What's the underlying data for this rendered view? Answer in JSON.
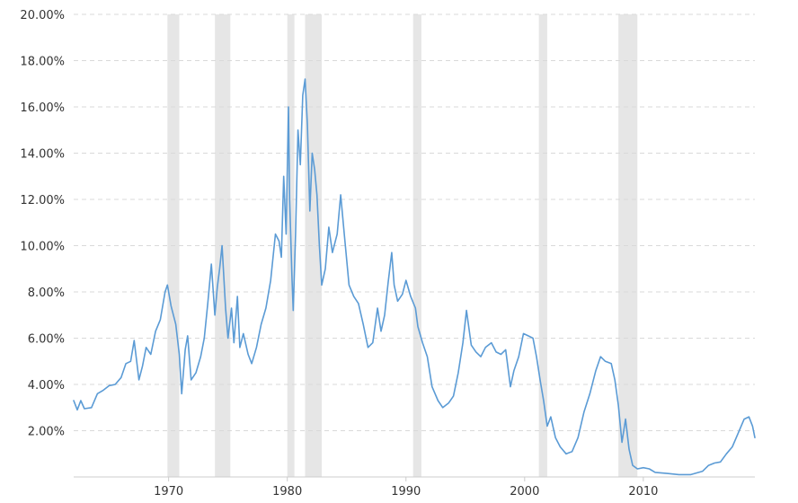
{
  "chart_data": {
    "type": "line",
    "title": "",
    "xlabel": "",
    "ylabel": "",
    "xlim": [
      1962.0,
      2019.4
    ],
    "ylim": [
      0,
      20
    ],
    "grid": true,
    "y_ticks": [
      {
        "value": 2,
        "label": "2.00%"
      },
      {
        "value": 4,
        "label": "4.00%"
      },
      {
        "value": 6,
        "label": "6.00%"
      },
      {
        "value": 8,
        "label": "8.00%"
      },
      {
        "value": 10,
        "label": "10.00%"
      },
      {
        "value": 12,
        "label": "12.00%"
      },
      {
        "value": 14,
        "label": "14.00%"
      },
      {
        "value": 16,
        "label": "16.00%"
      },
      {
        "value": 18,
        "label": "18.00%"
      },
      {
        "value": 20,
        "label": "20.00%"
      }
    ],
    "x_ticks": [
      {
        "value": 1970,
        "label": "1970"
      },
      {
        "value": 1980,
        "label": "1980"
      },
      {
        "value": 1990,
        "label": "1990"
      },
      {
        "value": 2000,
        "label": "2000"
      },
      {
        "value": 2010,
        "label": "2010"
      }
    ],
    "shaded_bands": [
      {
        "start": 1969.9,
        "end": 1970.9
      },
      {
        "start": 1973.9,
        "end": 1975.2
      },
      {
        "start": 1980.0,
        "end": 1980.6
      },
      {
        "start": 1981.5,
        "end": 1982.9
      },
      {
        "start": 1990.6,
        "end": 1991.3
      },
      {
        "start": 2001.2,
        "end": 2001.9
      },
      {
        "start": 2007.9,
        "end": 2009.5
      }
    ],
    "band_color": "#e6e6e6",
    "line_color": "#5b9bd5",
    "series": [
      {
        "values": [
          [
            1962.0,
            3.3
          ],
          [
            1962.3,
            2.9
          ],
          [
            1962.6,
            3.3
          ],
          [
            1962.9,
            2.95
          ],
          [
            1963.5,
            3.0
          ],
          [
            1964.0,
            3.6
          ],
          [
            1964.5,
            3.75
          ],
          [
            1965.0,
            3.95
          ],
          [
            1965.5,
            4.0
          ],
          [
            1966.0,
            4.3
          ],
          [
            1966.4,
            4.9
          ],
          [
            1966.8,
            5.0
          ],
          [
            1967.1,
            5.9
          ],
          [
            1967.5,
            4.2
          ],
          [
            1967.8,
            4.8
          ],
          [
            1968.1,
            5.6
          ],
          [
            1968.5,
            5.3
          ],
          [
            1968.9,
            6.3
          ],
          [
            1969.3,
            6.8
          ],
          [
            1969.7,
            8.0
          ],
          [
            1969.9,
            8.3
          ],
          [
            1970.2,
            7.4
          ],
          [
            1970.6,
            6.6
          ],
          [
            1970.9,
            5.3
          ],
          [
            1971.1,
            3.6
          ],
          [
            1971.4,
            5.5
          ],
          [
            1971.6,
            6.1
          ],
          [
            1971.9,
            4.2
          ],
          [
            1972.3,
            4.5
          ],
          [
            1972.7,
            5.2
          ],
          [
            1973.0,
            6.0
          ],
          [
            1973.3,
            7.5
          ],
          [
            1973.6,
            9.2
          ],
          [
            1973.9,
            7.0
          ],
          [
            1974.1,
            8.2
          ],
          [
            1974.3,
            9.0
          ],
          [
            1974.5,
            10.0
          ],
          [
            1974.8,
            7.3
          ],
          [
            1975.0,
            6.0
          ],
          [
            1975.3,
            7.3
          ],
          [
            1975.5,
            5.8
          ],
          [
            1975.8,
            7.8
          ],
          [
            1976.0,
            5.6
          ],
          [
            1976.3,
            6.2
          ],
          [
            1976.7,
            5.3
          ],
          [
            1977.0,
            4.9
          ],
          [
            1977.4,
            5.6
          ],
          [
            1977.8,
            6.6
          ],
          [
            1978.2,
            7.3
          ],
          [
            1978.6,
            8.5
          ],
          [
            1979.0,
            10.5
          ],
          [
            1979.3,
            10.2
          ],
          [
            1979.5,
            9.5
          ],
          [
            1979.7,
            13.0
          ],
          [
            1979.9,
            10.5
          ],
          [
            1980.1,
            16.0
          ],
          [
            1980.2,
            12.0
          ],
          [
            1980.4,
            8.5
          ],
          [
            1980.5,
            7.2
          ],
          [
            1980.7,
            10.5
          ],
          [
            1980.9,
            15.0
          ],
          [
            1981.1,
            13.5
          ],
          [
            1981.3,
            16.5
          ],
          [
            1981.5,
            17.2
          ],
          [
            1981.7,
            15.2
          ],
          [
            1981.9,
            11.5
          ],
          [
            1982.1,
            14.0
          ],
          [
            1982.3,
            13.3
          ],
          [
            1982.5,
            12.2
          ],
          [
            1982.7,
            10.0
          ],
          [
            1982.9,
            8.3
          ],
          [
            1983.2,
            9.0
          ],
          [
            1983.5,
            10.8
          ],
          [
            1983.8,
            9.7
          ],
          [
            1984.2,
            10.5
          ],
          [
            1984.5,
            12.2
          ],
          [
            1984.8,
            10.5
          ],
          [
            1985.2,
            8.3
          ],
          [
            1985.6,
            7.8
          ],
          [
            1986.0,
            7.5
          ],
          [
            1986.4,
            6.6
          ],
          [
            1986.8,
            5.6
          ],
          [
            1987.2,
            5.8
          ],
          [
            1987.6,
            7.3
          ],
          [
            1987.9,
            6.3
          ],
          [
            1988.2,
            7.0
          ],
          [
            1988.5,
            8.4
          ],
          [
            1988.8,
            9.7
          ],
          [
            1989.0,
            8.3
          ],
          [
            1989.3,
            7.6
          ],
          [
            1989.7,
            7.9
          ],
          [
            1990.0,
            8.5
          ],
          [
            1990.4,
            7.8
          ],
          [
            1990.8,
            7.3
          ],
          [
            1991.0,
            6.5
          ],
          [
            1991.4,
            5.8
          ],
          [
            1991.8,
            5.2
          ],
          [
            1992.2,
            3.9
          ],
          [
            1992.7,
            3.3
          ],
          [
            1993.1,
            3.0
          ],
          [
            1993.6,
            3.2
          ],
          [
            1994.0,
            3.5
          ],
          [
            1994.4,
            4.5
          ],
          [
            1994.8,
            5.8
          ],
          [
            1995.1,
            7.2
          ],
          [
            1995.5,
            5.7
          ],
          [
            1995.9,
            5.4
          ],
          [
            1996.3,
            5.2
          ],
          [
            1996.7,
            5.6
          ],
          [
            1997.2,
            5.8
          ],
          [
            1997.6,
            5.4
          ],
          [
            1998.0,
            5.3
          ],
          [
            1998.4,
            5.5
          ],
          [
            1998.8,
            3.9
          ],
          [
            1999.1,
            4.6
          ],
          [
            1999.5,
            5.2
          ],
          [
            1999.9,
            6.2
          ],
          [
            2000.3,
            6.1
          ],
          [
            2000.7,
            6.0
          ],
          [
            2001.0,
            5.2
          ],
          [
            2001.3,
            4.2
          ],
          [
            2001.6,
            3.3
          ],
          [
            2001.9,
            2.2
          ],
          [
            2002.2,
            2.6
          ],
          [
            2002.6,
            1.7
          ],
          [
            2003.0,
            1.3
          ],
          [
            2003.5,
            1.0
          ],
          [
            2004.0,
            1.1
          ],
          [
            2004.5,
            1.7
          ],
          [
            2005.0,
            2.8
          ],
          [
            2005.5,
            3.6
          ],
          [
            2006.0,
            4.6
          ],
          [
            2006.4,
            5.2
          ],
          [
            2006.8,
            5.0
          ],
          [
            2007.3,
            4.9
          ],
          [
            2007.6,
            4.2
          ],
          [
            2007.9,
            3.1
          ],
          [
            2008.2,
            1.5
          ],
          [
            2008.5,
            2.5
          ],
          [
            2008.8,
            1.2
          ],
          [
            2009.1,
            0.5
          ],
          [
            2009.5,
            0.35
          ],
          [
            2010.0,
            0.4
          ],
          [
            2010.5,
            0.35
          ],
          [
            2011.0,
            0.2
          ],
          [
            2012.0,
            0.15
          ],
          [
            2013.0,
            0.1
          ],
          [
            2014.0,
            0.1
          ],
          [
            2015.0,
            0.25
          ],
          [
            2015.5,
            0.5
          ],
          [
            2016.0,
            0.6
          ],
          [
            2016.5,
            0.65
          ],
          [
            2017.0,
            1.0
          ],
          [
            2017.5,
            1.3
          ],
          [
            2018.0,
            1.9
          ],
          [
            2018.5,
            2.5
          ],
          [
            2018.9,
            2.6
          ],
          [
            2019.2,
            2.2
          ],
          [
            2019.4,
            1.7
          ]
        ]
      }
    ]
  }
}
